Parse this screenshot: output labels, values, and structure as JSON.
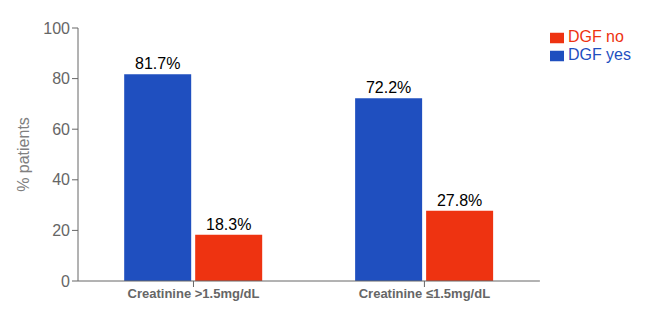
{
  "chart_data": {
    "type": "bar",
    "categories": [
      "Creatinine >1.5mg/dL",
      "Creatinine ≤1.5mg/dL"
    ],
    "series": [
      {
        "name": "DGF yes",
        "color": "#1F4FBF",
        "values": [
          81.7,
          72.2
        ],
        "value_labels": [
          "81.7%",
          "72.2%"
        ]
      },
      {
        "name": "DGF no",
        "color": "#EE3311",
        "values": [
          18.3,
          27.8
        ],
        "value_labels": [
          "18.3%",
          "27.8%"
        ]
      }
    ],
    "ylabel": "% patients",
    "ylim": [
      0,
      100
    ],
    "yticks": [
      0,
      20,
      40,
      60,
      80,
      100
    ],
    "grid": false,
    "legend": "upper right",
    "data_labels": true
  }
}
